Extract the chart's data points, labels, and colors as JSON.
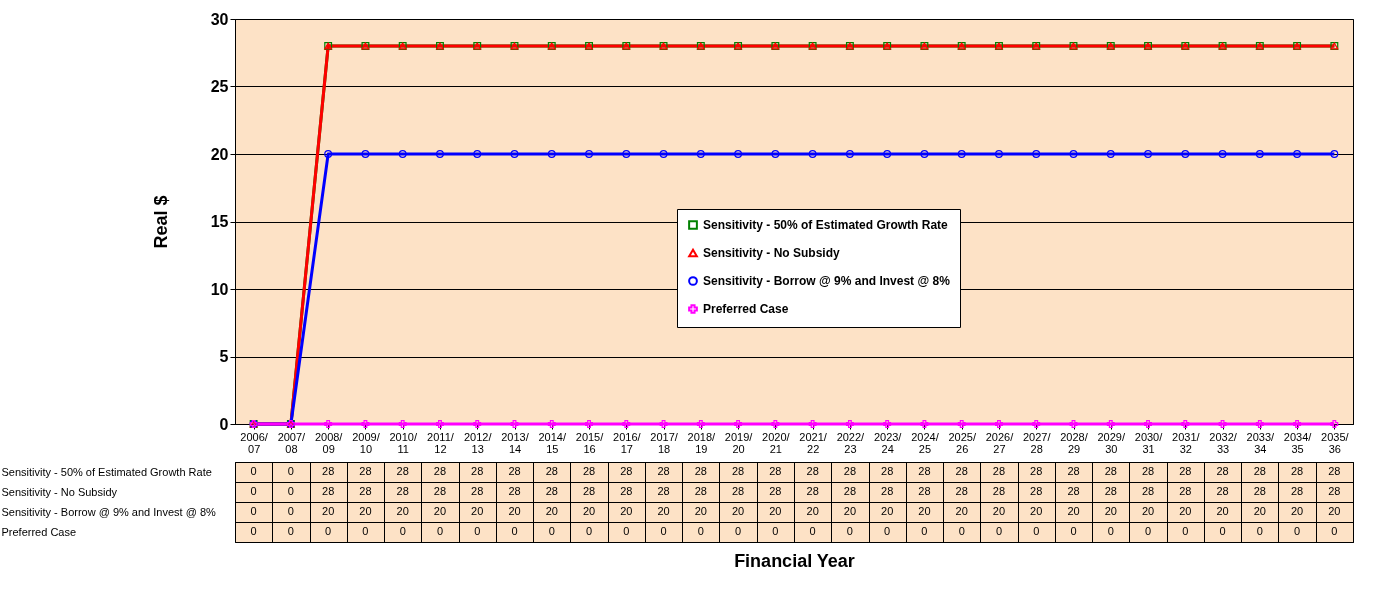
{
  "chart_data": {
    "type": "line",
    "annotations": [
      "Financial Year"
    ],
    "ylabel": "Real $",
    "categories": [
      "2006/07",
      "2007/08",
      "2008/09",
      "2009/10",
      "2010/11",
      "2011/12",
      "2012/13",
      "2013/14",
      "2014/15",
      "2015/16",
      "2016/17",
      "2017/18",
      "2018/19",
      "2019/20",
      "2020/21",
      "2021/22",
      "2022/23",
      "2023/24",
      "2024/25",
      "2025/26",
      "2026/27",
      "2027/28",
      "2028/29",
      "2029/30",
      "2030/31",
      "2031/32",
      "2032/33",
      "2033/34",
      "2034/35",
      "2035/36"
    ],
    "series": [
      {
        "name": "Sensitivity - 50% of Estimated Growth Rate",
        "color": "#008000",
        "marker": "square",
        "values": [
          0,
          0,
          28,
          28,
          28,
          28,
          28,
          28,
          28,
          28,
          28,
          28,
          28,
          28,
          28,
          28,
          28,
          28,
          28,
          28,
          28,
          28,
          28,
          28,
          28,
          28,
          28,
          28,
          28,
          28
        ]
      },
      {
        "name": "Sensitivity - No Subsidy",
        "color": "#ff0000",
        "marker": "triangle",
        "values": [
          0,
          0,
          28,
          28,
          28,
          28,
          28,
          28,
          28,
          28,
          28,
          28,
          28,
          28,
          28,
          28,
          28,
          28,
          28,
          28,
          28,
          28,
          28,
          28,
          28,
          28,
          28,
          28,
          28,
          28
        ]
      },
      {
        "name": "Sensitivity - Borrow @ 9% and Invest @ 8%",
        "color": "#0000ff",
        "marker": "circle",
        "values": [
          0,
          0,
          20,
          20,
          20,
          20,
          20,
          20,
          20,
          20,
          20,
          20,
          20,
          20,
          20,
          20,
          20,
          20,
          20,
          20,
          20,
          20,
          20,
          20,
          20,
          20,
          20,
          20,
          20,
          20
        ]
      },
      {
        "name": "Preferred Case",
        "color": "#ff00ff",
        "marker": "cross",
        "values": [
          0,
          0,
          0,
          0,
          0,
          0,
          0,
          0,
          0,
          0,
          0,
          0,
          0,
          0,
          0,
          0,
          0,
          0,
          0,
          0,
          0,
          0,
          0,
          0,
          0,
          0,
          0,
          0,
          0,
          0
        ]
      }
    ],
    "ylim": [
      0,
      30
    ],
    "yticks": [
      0,
      5,
      10,
      15,
      20,
      25,
      30
    ],
    "grid": "y",
    "legend": "right",
    "data_labels": true
  }
}
